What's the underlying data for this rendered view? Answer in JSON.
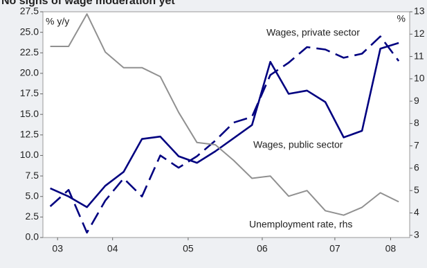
{
  "chart_data": {
    "type": "line",
    "title": "No signs of wage moderation yet",
    "y_axis_label": "% y/y",
    "y2_axis_label": "%",
    "x": [
      2003.0,
      2003.25,
      2003.5,
      2003.75,
      2004.0,
      2004.25,
      2004.5,
      2004.75,
      2005.0,
      2005.25,
      2005.5,
      2005.75,
      2006.0,
      2006.25,
      2006.5,
      2006.75,
      2007.0,
      2007.25,
      2007.5,
      2007.75
    ],
    "xlim": [
      2002.9,
      2007.9
    ],
    "xticks": [
      {
        "value": 2003.1,
        "label": "03"
      },
      {
        "value": 2003.85,
        "label": "04"
      },
      {
        "value": 2004.88,
        "label": "05"
      },
      {
        "value": 2005.89,
        "label": "06"
      },
      {
        "value": 2006.88,
        "label": "07"
      },
      {
        "value": 2007.64,
        "label": "08"
      }
    ],
    "ylim": [
      0,
      27.5
    ],
    "yticks": [
      {
        "value": 0,
        "label": "0.0"
      },
      2.5,
      {
        "value": 5,
        "label": "5.0"
      },
      7.5,
      {
        "value": 10,
        "label": "10.0"
      },
      12.5,
      {
        "value": 15,
        "label": "15.0"
      },
      17.5,
      {
        "value": 20,
        "label": "20.0"
      },
      22.5,
      {
        "value": 25,
        "label": "25.0"
      },
      27.5
    ],
    "y2lim": [
      2.9,
      13.0
    ],
    "y2ticks": [
      3,
      4,
      5,
      6,
      7,
      8,
      9,
      10,
      11,
      12,
      13
    ],
    "series": [
      {
        "name": "Wages, private sector",
        "color": "#000080",
        "dashed": true,
        "values": [
          3.8,
          5.8,
          0.6,
          4.5,
          7.2,
          5.0,
          10.0,
          8.5,
          9.9,
          11.8,
          14.0,
          14.7,
          19.8,
          21.3,
          23.2,
          22.9,
          21.9,
          22.4,
          24.5,
          21.5
        ]
      },
      {
        "name": "Wages, public sector",
        "color": "#000080",
        "values": [
          6.0,
          5.0,
          3.7,
          6.3,
          8.0,
          12.0,
          12.3,
          9.9,
          9.1,
          10.5,
          12.1,
          13.7,
          21.4,
          17.5,
          17.9,
          16.5,
          12.2,
          13.0,
          23.0,
          23.7
        ]
      },
      {
        "name": "Unemployment rate, rhs",
        "color": "#909090",
        "axis": "y2",
        "values": [
          11.45,
          11.45,
          12.9,
          11.2,
          10.5,
          10.5,
          10.1,
          8.5,
          7.15,
          7.05,
          6.35,
          5.55,
          5.65,
          4.75,
          5.0,
          4.1,
          3.9,
          4.25,
          4.9,
          4.5
        ]
      }
    ]
  }
}
